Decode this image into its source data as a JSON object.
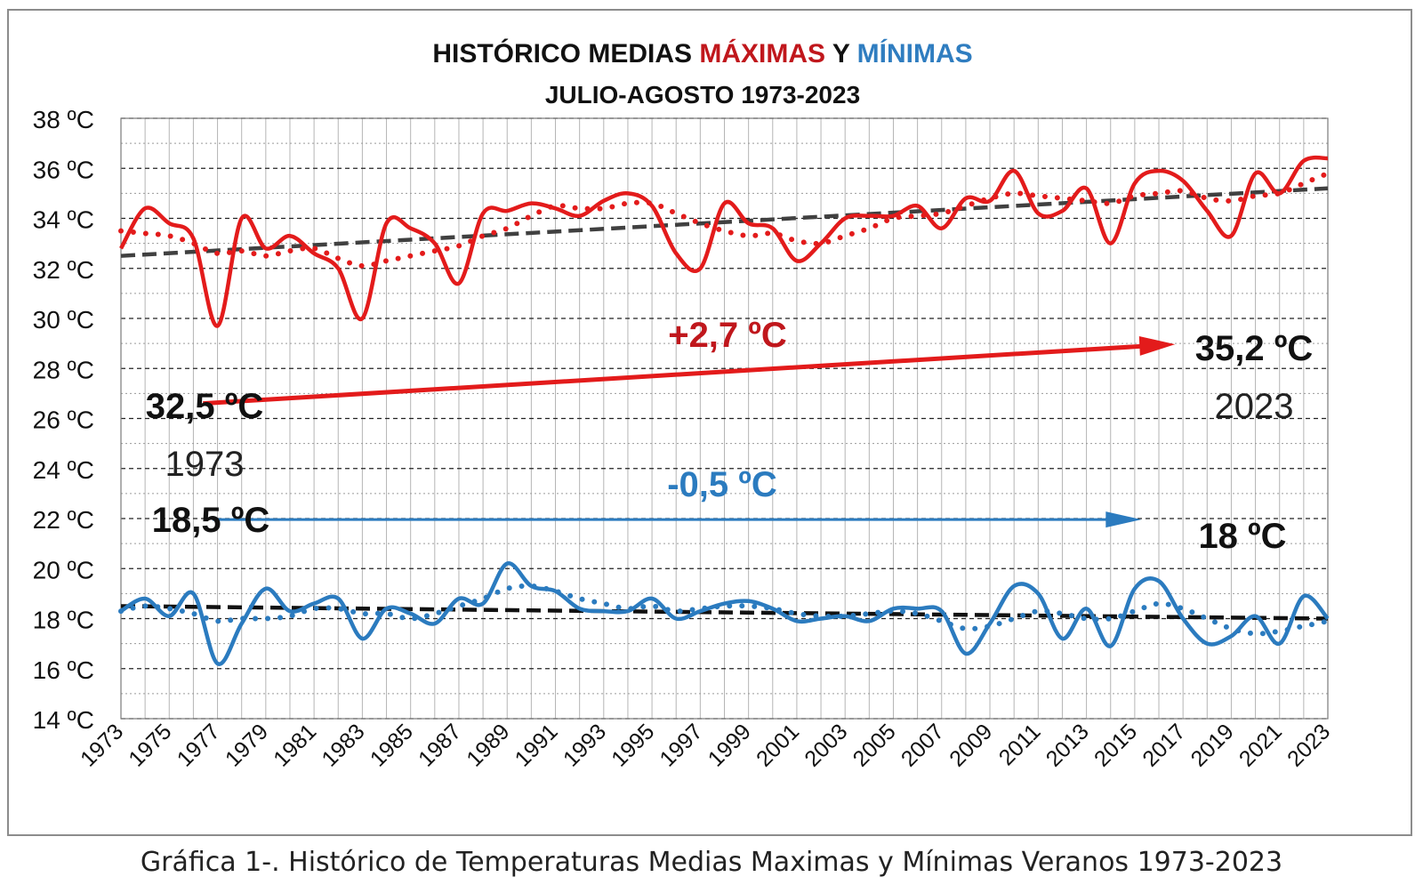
{
  "chart_data": {
    "type": "line",
    "title": {
      "part1": "HISTÓRICO MEDIAS ",
      "part2": "MÁXIMAS",
      "part3": " Y ",
      "part4": "MÍNIMAS",
      "line2": "JULIO-AGOSTO  1973-2023"
    },
    "xlabel": "",
    "ylabel": "",
    "ylim": [
      14,
      38
    ],
    "yticks": [
      {
        "v": 14,
        "label": "14 ºC"
      },
      {
        "v": 16,
        "label": "16 ºC"
      },
      {
        "v": 18,
        "label": "18 ºC"
      },
      {
        "v": 20,
        "label": "20 ºC"
      },
      {
        "v": 22,
        "label": "22 ºC"
      },
      {
        "v": 24,
        "label": "24 ºC"
      },
      {
        "v": 26,
        "label": "26 ºC"
      },
      {
        "v": 28,
        "label": "28 ºC"
      },
      {
        "v": 30,
        "label": "30 ºC"
      },
      {
        "v": 32,
        "label": "32 ºC"
      },
      {
        "v": 34,
        "label": "34 ºC"
      },
      {
        "v": 36,
        "label": "36 ºC"
      },
      {
        "v": 38,
        "label": "38 ºC"
      }
    ],
    "xlim": [
      1973,
      2023
    ],
    "xticks": [
      "1973",
      "1975",
      "1977",
      "1979",
      "1981",
      "1983",
      "1985",
      "1987",
      "1989",
      "1991",
      "1993",
      "1995",
      "1997",
      "1999",
      "2001",
      "2003",
      "2005",
      "2007",
      "2009",
      "2011",
      "2013",
      "2015",
      "2017",
      "2019",
      "2021",
      "2023"
    ],
    "grid": true,
    "colors": {
      "max": "#e31b1b",
      "min": "#2b7bbf",
      "trend": "#404040",
      "title_max": "#c0171c",
      "title_min": "#2f7dc0",
      "dark_red": "#c0171c"
    },
    "series": [
      {
        "key": "max",
        "years": [
          1973,
          1974,
          1975,
          1976,
          1977,
          1978,
          1979,
          1980,
          1981,
          1982,
          1983,
          1984,
          1985,
          1986,
          1987,
          1988,
          1989,
          1990,
          1991,
          1992,
          1993,
          1994,
          1995,
          1996,
          1997,
          1998,
          1999,
          2000,
          2001,
          2002,
          2003,
          2004,
          2005,
          2006,
          2007,
          2008,
          2009,
          2010,
          2011,
          2012,
          2013,
          2014,
          2015,
          2016,
          2017,
          2018,
          2019,
          2020,
          2021,
          2022,
          2023
        ],
        "values": [
          32.8,
          34.4,
          33.8,
          33.2,
          29.7,
          34.0,
          32.8,
          33.3,
          32.6,
          32.0,
          30.0,
          33.8,
          33.6,
          33.0,
          31.4,
          34.2,
          34.3,
          34.6,
          34.4,
          34.1,
          34.7,
          35.0,
          34.5,
          32.6,
          32.0,
          34.6,
          33.8,
          33.6,
          32.3,
          33.0,
          34.0,
          34.1,
          34.1,
          34.5,
          33.6,
          34.8,
          34.7,
          35.9,
          34.2,
          34.3,
          35.2,
          33.0,
          35.4,
          35.9,
          35.5,
          34.3,
          33.3,
          35.8,
          35.0,
          36.3,
          36.4
        ],
        "moving_avg": [
          33.5,
          33.4,
          33.3,
          33.0,
          32.6,
          32.7,
          32.5,
          32.7,
          32.8,
          32.4,
          32.1,
          32.3,
          32.5,
          32.7,
          32.9,
          33.3,
          33.6,
          34.1,
          34.5,
          34.4,
          34.4,
          34.6,
          34.6,
          34.2,
          33.8,
          33.5,
          33.3,
          33.4,
          33.1,
          33.0,
          33.3,
          33.6,
          34.0,
          34.1,
          34.2,
          34.5,
          34.8,
          35.0,
          34.9,
          34.8,
          34.7,
          34.6,
          34.9,
          35.0,
          35.1,
          34.8,
          34.7,
          34.9,
          35.0,
          35.4,
          35.8
        ]
      },
      {
        "key": "min",
        "years": [
          1973,
          1974,
          1975,
          1976,
          1977,
          1978,
          1979,
          1980,
          1981,
          1982,
          1983,
          1984,
          1985,
          1986,
          1987,
          1988,
          1989,
          1990,
          1991,
          1992,
          1993,
          1994,
          1995,
          1996,
          1997,
          1998,
          1999,
          2000,
          2001,
          2002,
          2003,
          2004,
          2005,
          2006,
          2007,
          2008,
          2009,
          2010,
          2011,
          2012,
          2013,
          2014,
          2015,
          2016,
          2017,
          2018,
          2019,
          2020,
          2021,
          2022,
          2023
        ],
        "values": [
          18.3,
          18.8,
          18.1,
          19.0,
          16.2,
          17.8,
          19.2,
          18.3,
          18.6,
          18.8,
          17.2,
          18.4,
          18.2,
          17.8,
          18.8,
          18.6,
          20.2,
          19.3,
          19.1,
          18.4,
          18.3,
          18.3,
          18.8,
          18.0,
          18.3,
          18.6,
          18.7,
          18.4,
          17.9,
          18.0,
          18.1,
          17.9,
          18.4,
          18.4,
          18.3,
          16.6,
          17.8,
          19.3,
          19.0,
          17.2,
          18.4,
          16.9,
          19.2,
          19.5,
          18.0,
          17.0,
          17.3,
          18.1,
          17.0,
          18.9,
          18.0
        ],
        "moving_avg": [
          18.3,
          18.5,
          18.4,
          18.2,
          17.9,
          18.0,
          18.0,
          18.1,
          18.4,
          18.4,
          18.2,
          18.2,
          18.0,
          18.2,
          18.5,
          18.8,
          19.2,
          19.3,
          19.1,
          18.8,
          18.6,
          18.4,
          18.5,
          18.3,
          18.4,
          18.5,
          18.5,
          18.4,
          18.2,
          18.1,
          18.1,
          18.2,
          18.3,
          18.2,
          17.9,
          17.6,
          17.7,
          18.0,
          18.3,
          18.2,
          18.0,
          18.0,
          18.3,
          18.6,
          18.4,
          18.0,
          17.6,
          17.4,
          17.5,
          17.7,
          17.9
        ]
      }
    ],
    "trends": [
      {
        "key": "max",
        "from": [
          1973,
          32.5
        ],
        "to": [
          2023,
          35.2
        ]
      },
      {
        "key": "min",
        "from": [
          1973,
          18.5
        ],
        "to": [
          2023,
          18.0
        ]
      }
    ],
    "annotations": {
      "max_start_value": "32,5 ºC",
      "max_start_year": "1973",
      "max_delta": "+2,7 ºC",
      "max_end_value": "35,2 ºC",
      "max_end_year": "2023",
      "min_start_value": "18,5 ºC",
      "min_delta": "-0,5 ºC",
      "min_end_value": "18 ºC"
    },
    "caption": "Gráfica 1-. Histórico de Temperaturas Medias Maximas y Mínimas Veranos 1973-2023"
  }
}
